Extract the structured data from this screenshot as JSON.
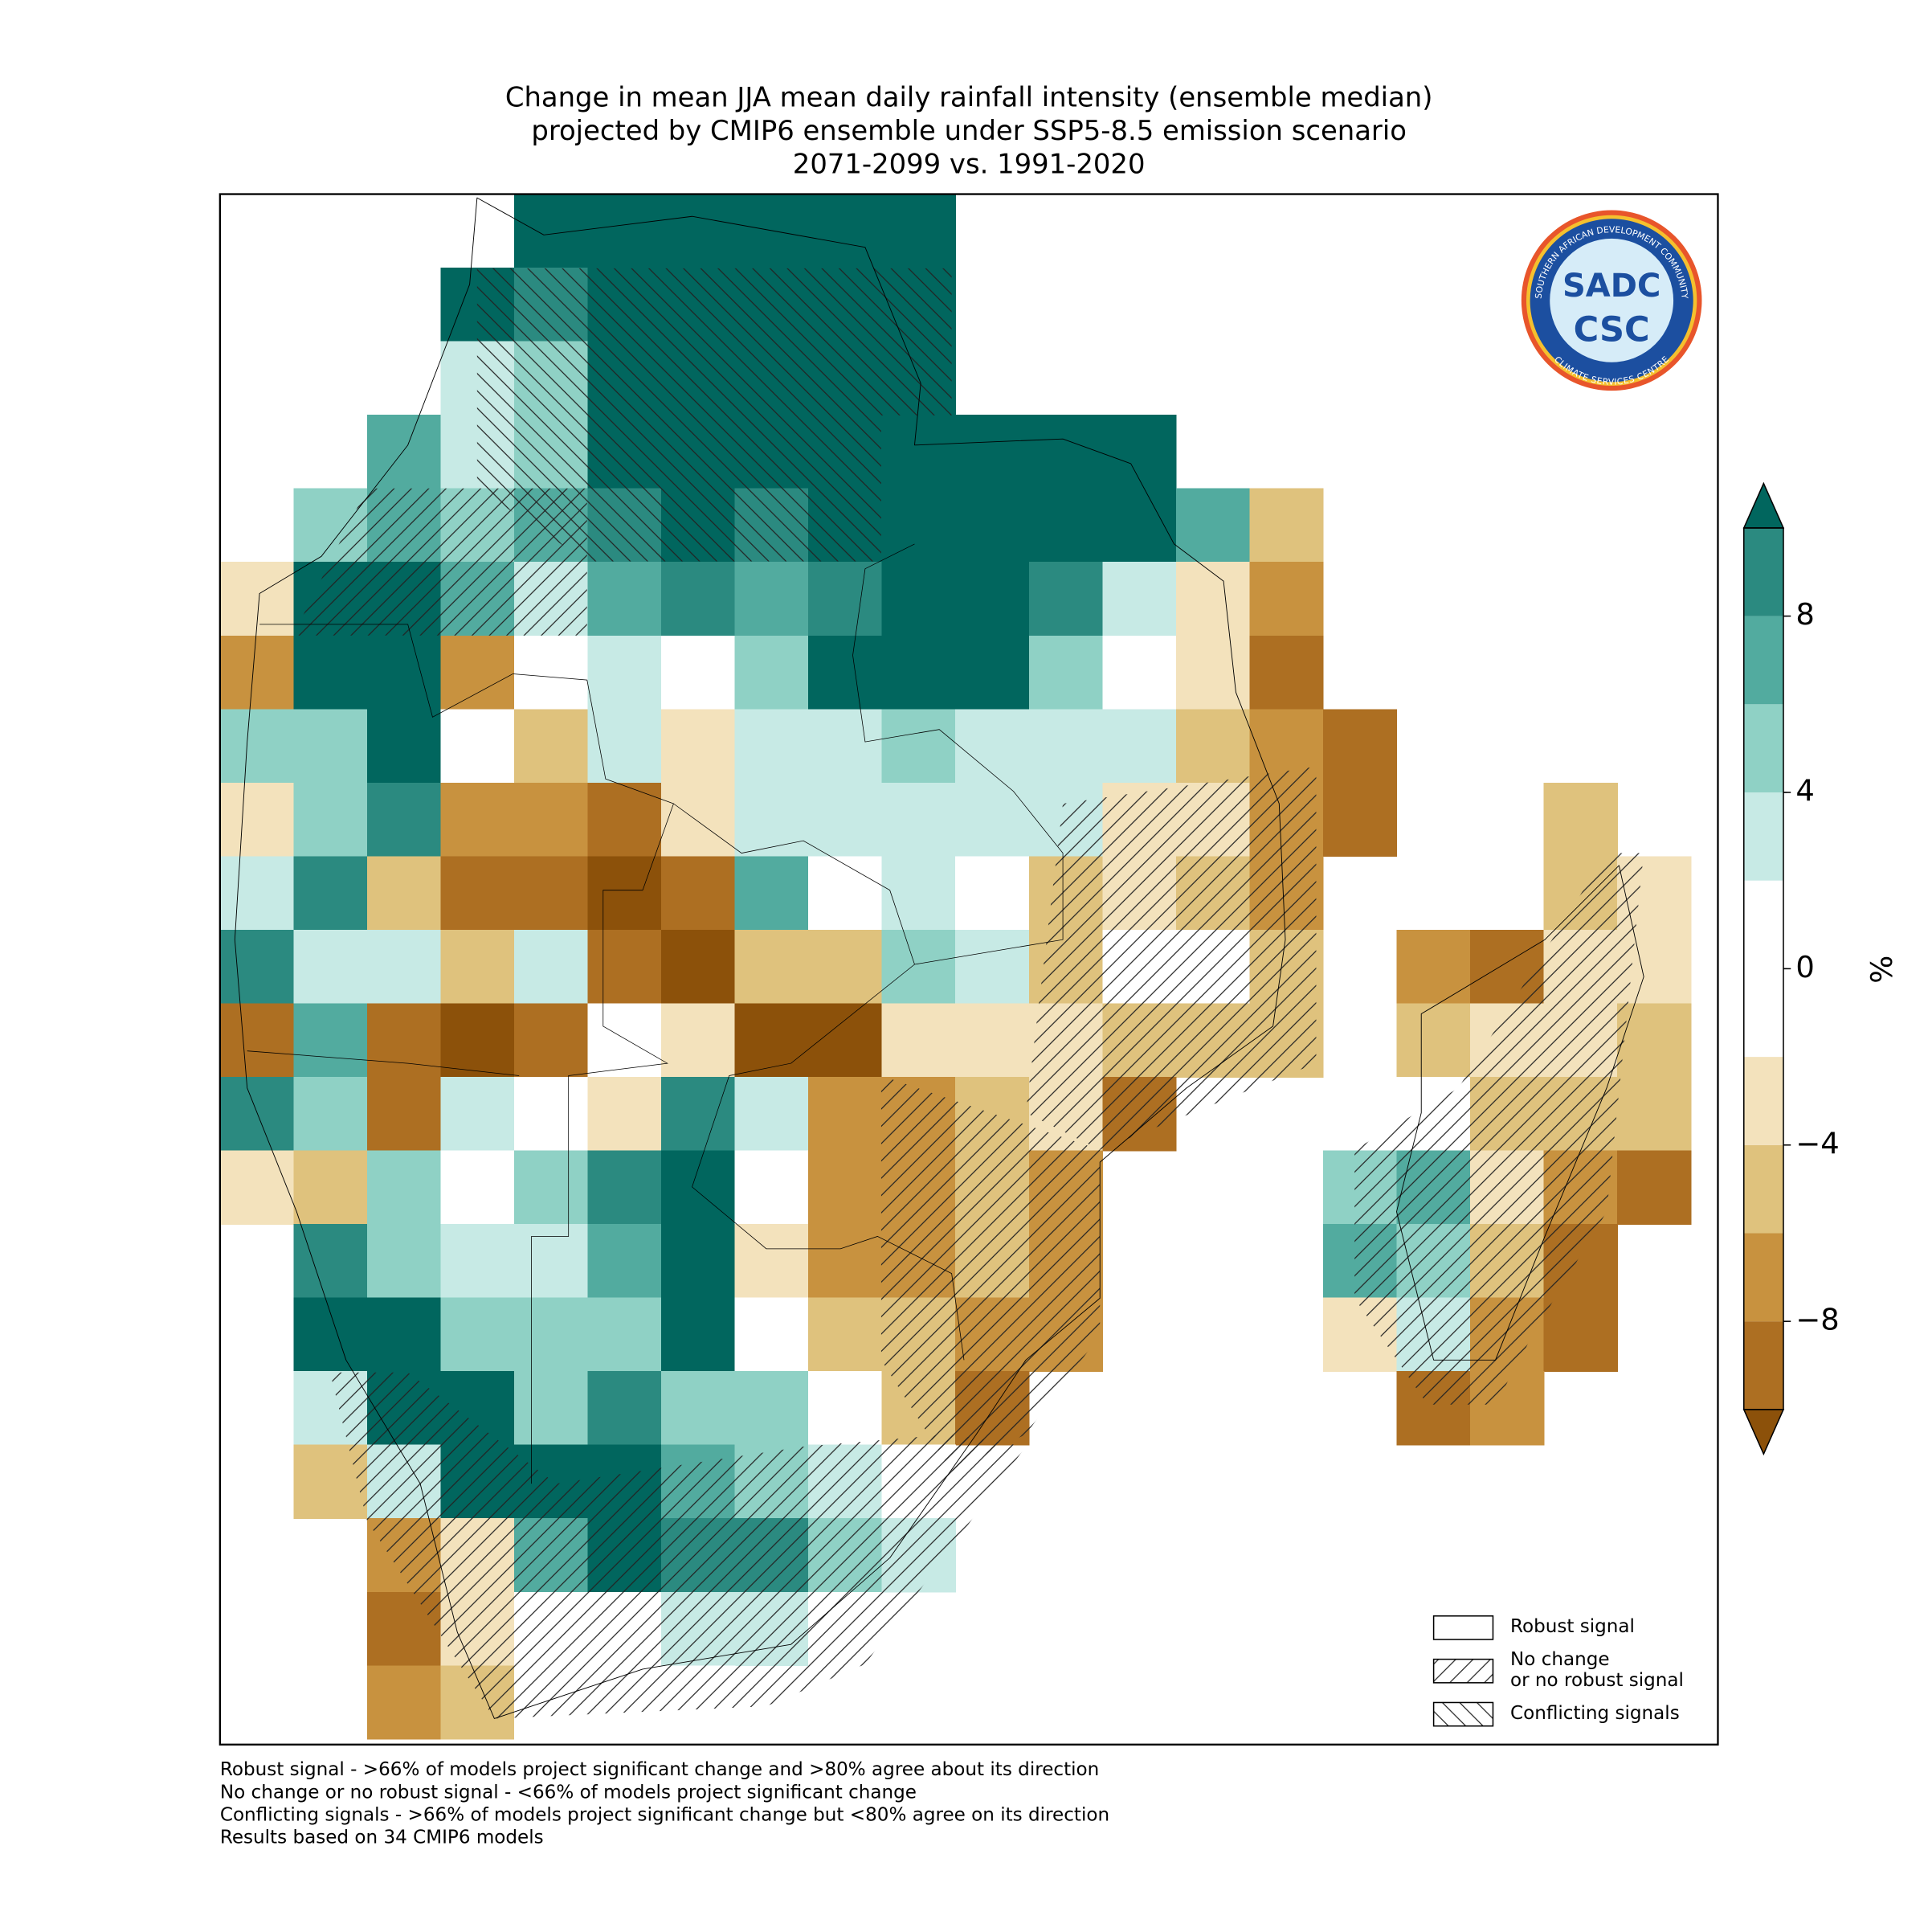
{
  "map": {
    "title": [
      "Change in mean JJA mean daily rainfall intensity (ensemble median)",
      "projected by CMIP6 ensemble under SSP5-8.5 emission scenario",
      "2071-2099 vs. 1991-2020"
    ],
    "colorbar": {
      "label": "%",
      "lim": [
        -10,
        10
      ],
      "bounds": [
        -10,
        -8,
        -6,
        -4,
        -2,
        2,
        4,
        6,
        8,
        10
      ],
      "colors": [
        "#ad6f22",
        "#c8923f",
        "#dfc27d",
        "#f3e2bc",
        "#ffffff",
        "#c7eae5",
        "#8fd1c5",
        "#52ab9f",
        "#2b8a80"
      ],
      "under_color": "#8c510a",
      "over_color": "#01665e",
      "ticks": [
        {
          "value": -8,
          "label": "−8"
        },
        {
          "value": -4,
          "label": "−4"
        },
        0,
        4,
        8
      ]
    },
    "cells": [
      [
        null,
        null,
        null,
        null,
        12,
        12,
        12,
        12,
        12,
        12,
        null,
        null,
        null,
        null,
        null,
        null,
        null,
        null,
        null,
        null
      ],
      [
        null,
        null,
        null,
        12,
        9,
        12,
        12,
        12,
        12,
        12,
        null,
        null,
        null,
        null,
        null,
        null,
        null,
        null,
        null,
        null
      ],
      [
        null,
        null,
        null,
        3,
        5,
        12,
        12,
        12,
        12,
        12,
        null,
        null,
        null,
        null,
        null,
        null,
        null,
        null,
        null,
        null
      ],
      [
        null,
        null,
        7,
        3,
        5,
        12,
        12,
        12,
        12,
        12,
        12,
        12,
        12,
        null,
        null,
        null,
        null,
        null,
        null,
        null
      ],
      [
        null,
        5,
        7,
        5,
        7,
        9,
        12,
        9,
        12,
        12,
        12,
        12,
        12,
        7,
        -5,
        null,
        null,
        null,
        null,
        null
      ],
      [
        -3,
        12,
        12,
        7,
        3,
        7,
        9,
        7,
        9,
        12,
        12,
        9,
        3,
        -3,
        -7,
        null,
        null,
        null,
        null,
        null
      ],
      [
        -7,
        12,
        12,
        -7,
        0,
        3,
        0,
        5,
        12,
        12,
        12,
        5,
        0,
        -3,
        -9,
        null,
        null,
        null,
        null,
        null
      ],
      [
        5,
        5,
        12,
        0,
        -5,
        3,
        -3,
        3,
        3,
        5,
        3,
        3,
        3,
        -5,
        -7,
        -9,
        null,
        null,
        null,
        null
      ],
      [
        -3,
        5,
        9,
        -7,
        -7,
        -9,
        -3,
        3,
        3,
        3,
        3,
        3,
        -3,
        -3,
        -7,
        -9,
        null,
        null,
        -5,
        null
      ],
      [
        3,
        9,
        -5,
        -9,
        -9,
        -12,
        -9,
        7,
        0,
        3,
        0,
        -5,
        -3,
        -5,
        -7,
        null,
        null,
        null,
        -5,
        -3
      ],
      [
        9,
        3,
        3,
        -5,
        3,
        -9,
        -12,
        -5,
        -5,
        5,
        3,
        -5,
        0,
        0,
        -5,
        null,
        -7,
        -9,
        -3,
        -3
      ],
      [
        -9,
        7,
        -9,
        -12,
        -9,
        0,
        -3,
        -12,
        -12,
        -3,
        -3,
        -3,
        -5,
        -5,
        -5,
        null,
        -5,
        -3,
        -3,
        -5
      ],
      [
        9,
        5,
        -9,
        3,
        0,
        -3,
        9,
        3,
        -7,
        -7,
        -5,
        -3,
        -9,
        null,
        null,
        null,
        0,
        -5,
        -5,
        -5
      ],
      [
        -3,
        -5,
        5,
        0,
        5,
        9,
        12,
        0,
        -7,
        -7,
        -5,
        -7,
        null,
        null,
        null,
        5,
        7,
        -3,
        -7,
        -9
      ],
      [
        null,
        9,
        5,
        3,
        3,
        7,
        12,
        -3,
        -7,
        -7,
        -5,
        -7,
        null,
        null,
        null,
        7,
        5,
        -5,
        -9,
        null
      ],
      [
        null,
        12,
        12,
        5,
        5,
        5,
        12,
        0,
        -5,
        -5,
        -7,
        -7,
        null,
        null,
        null,
        -3,
        3,
        -7,
        -9,
        null
      ],
      [
        null,
        3,
        12,
        12,
        5,
        9,
        5,
        5,
        0,
        -5,
        -9,
        null,
        null,
        null,
        null,
        null,
        -9,
        -7,
        null,
        null
      ],
      [
        null,
        -5,
        3,
        12,
        12,
        12,
        7,
        5,
        3,
        0,
        null,
        null,
        null,
        null,
        null,
        null,
        null,
        null,
        null,
        null
      ],
      [
        null,
        null,
        -7,
        -3,
        7,
        12,
        9,
        9,
        5,
        3,
        null,
        null,
        null,
        null,
        null,
        null,
        null,
        null,
        null,
        null
      ],
      [
        null,
        null,
        -9,
        -3,
        0,
        0,
        3,
        3,
        0,
        null,
        null,
        null,
        null,
        null,
        null,
        null,
        null,
        null,
        null,
        null
      ],
      [
        null,
        null,
        -7,
        -5,
        0,
        0,
        0,
        null,
        null,
        null,
        null,
        null,
        null,
        null,
        null,
        null,
        null,
        null,
        null,
        null
      ]
    ],
    "legend": [
      [
        "Robust signal"
      ],
      [
        "No change",
        "or no robust signal"
      ],
      [
        "Conflicting signals"
      ]
    ],
    "footnotes": [
      "Robust signal - >66% of models project significant change and >80% agree about its direction",
      "No change or no robust signal - <66% of models project significant change",
      "Conflicting signals - >66% of models project significant change but <80% agree on its direction",
      "Results based on 34 CMIP6 models"
    ],
    "logo": {
      "name": "SADC",
      "abbr": "CSC",
      "ring_top": "SOUTHERN AFRICAN DEVELOPMENT COMMUNITY",
      "ring_bottom": "CLIMATE SERVICES CENTRE"
    }
  }
}
